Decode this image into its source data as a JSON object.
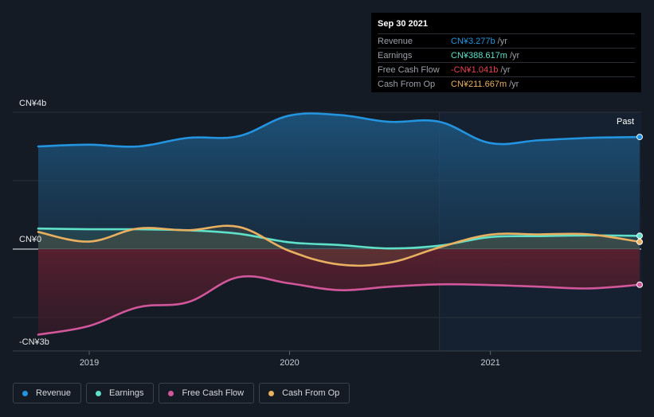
{
  "chart_data": {
    "type": "line",
    "y_axis": {
      "top_label": "CN¥4b",
      "zero_label": "CN¥0",
      "bottom_label": "-CN¥3b",
      "ylim": [
        -3.0,
        4.0
      ]
    },
    "x_axis": {
      "ticks": [
        "2019",
        "2020",
        "2021"
      ],
      "xlim": [
        "2018-09-30",
        "2021-09-30"
      ]
    },
    "past_label": "Past",
    "forecast_boundary": "2020-09-30",
    "series": [
      {
        "name": "Revenue",
        "color": "#2394df",
        "points": [
          [
            "2018-09-30",
            3.0
          ],
          [
            "2018-12-31",
            3.05
          ],
          [
            "2019-03-31",
            3.0
          ],
          [
            "2019-06-30",
            3.25
          ],
          [
            "2019-09-30",
            3.3
          ],
          [
            "2019-12-31",
            3.9
          ],
          [
            "2020-03-31",
            3.92
          ],
          [
            "2020-06-30",
            3.72
          ],
          [
            "2020-09-30",
            3.72
          ],
          [
            "2020-12-31",
            3.1
          ],
          [
            "2021-03-31",
            3.18
          ],
          [
            "2021-06-30",
            3.25
          ],
          [
            "2021-09-30",
            3.277
          ]
        ]
      },
      {
        "name": "Earnings",
        "color": "#5fe0c8",
        "points": [
          [
            "2018-09-30",
            0.6
          ],
          [
            "2018-12-31",
            0.58
          ],
          [
            "2019-03-31",
            0.58
          ],
          [
            "2019-06-30",
            0.55
          ],
          [
            "2019-09-30",
            0.45
          ],
          [
            "2019-12-31",
            0.2
          ],
          [
            "2020-03-31",
            0.12
          ],
          [
            "2020-06-30",
            0.02
          ],
          [
            "2020-09-30",
            0.1
          ],
          [
            "2020-12-31",
            0.35
          ],
          [
            "2021-03-31",
            0.38
          ],
          [
            "2021-06-30",
            0.4
          ],
          [
            "2021-09-30",
            0.3886
          ]
        ]
      },
      {
        "name": "Free Cash Flow",
        "color": "#d1579a",
        "points": [
          [
            "2018-09-30",
            -2.5
          ],
          [
            "2018-12-31",
            -2.25
          ],
          [
            "2019-03-31",
            -1.7
          ],
          [
            "2019-06-30",
            -1.55
          ],
          [
            "2019-09-30",
            -0.82
          ],
          [
            "2019-12-31",
            -1.0
          ],
          [
            "2020-03-31",
            -1.2
          ],
          [
            "2020-06-30",
            -1.1
          ],
          [
            "2020-09-30",
            -1.03
          ],
          [
            "2020-12-31",
            -1.05
          ],
          [
            "2021-03-31",
            -1.1
          ],
          [
            "2021-06-30",
            -1.15
          ],
          [
            "2021-09-30",
            -1.041
          ]
        ]
      },
      {
        "name": "Cash From Op",
        "color": "#e8b060",
        "points": [
          [
            "2018-09-30",
            0.5
          ],
          [
            "2018-12-31",
            0.22
          ],
          [
            "2019-03-31",
            0.6
          ],
          [
            "2019-06-30",
            0.55
          ],
          [
            "2019-09-30",
            0.65
          ],
          [
            "2019-12-31",
            -0.05
          ],
          [
            "2020-03-31",
            -0.45
          ],
          [
            "2020-06-30",
            -0.4
          ],
          [
            "2020-09-30",
            0.05
          ],
          [
            "2020-12-31",
            0.42
          ],
          [
            "2021-03-31",
            0.43
          ],
          [
            "2021-06-30",
            0.43
          ],
          [
            "2021-09-30",
            0.2117
          ]
        ]
      }
    ]
  },
  "tooltip": {
    "date": "Sep 30 2021",
    "rows": [
      {
        "name": "Revenue",
        "value": "CN¥3.277b",
        "unit": "/yr",
        "color": "#2394df"
      },
      {
        "name": "Earnings",
        "value": "CN¥388.617m",
        "unit": "/yr",
        "color": "#5fe0c8"
      },
      {
        "name": "Free Cash Flow",
        "value": "-CN¥1.041b",
        "unit": "/yr",
        "color": "#e8434d"
      },
      {
        "name": "Cash From Op",
        "value": "CN¥211.667m",
        "unit": "/yr",
        "color": "#e8b060"
      }
    ]
  },
  "legend": [
    {
      "label": "Revenue",
      "color": "#2394df"
    },
    {
      "label": "Earnings",
      "color": "#5fe0c8"
    },
    {
      "label": "Free Cash Flow",
      "color": "#d1579a"
    },
    {
      "label": "Cash From Op",
      "color": "#e8b060"
    }
  ]
}
